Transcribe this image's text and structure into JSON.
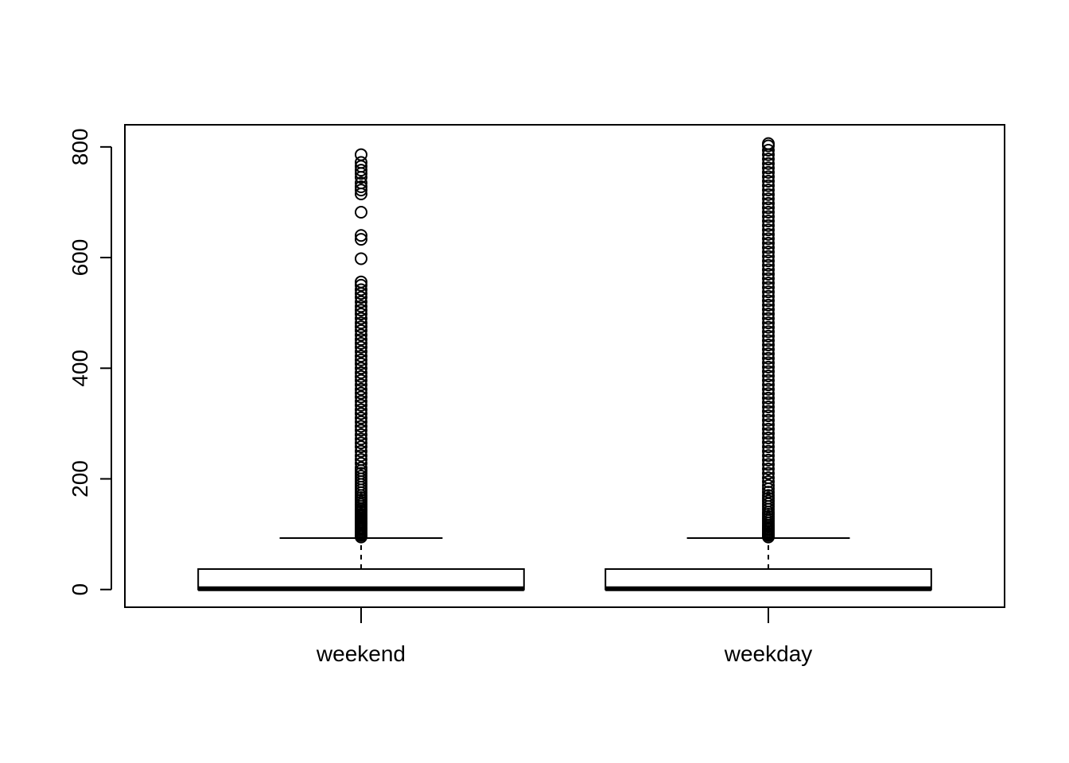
{
  "chart_data": {
    "type": "boxplot",
    "title": "",
    "xlabel": "",
    "ylabel": "",
    "ylim": [
      -32,
      840
    ],
    "yticks": [
      0,
      200,
      400,
      600,
      800
    ],
    "categories": [
      "weekend",
      "weekday"
    ],
    "boxes": [
      {
        "name": "weekend",
        "min": 0,
        "q1": 0,
        "median": 0,
        "q3": 37,
        "whisker_high": 93,
        "outliers": [
          95,
          98,
          100,
          102,
          105,
          108,
          110,
          112,
          115,
          118,
          120,
          122,
          125,
          128,
          130,
          133,
          136,
          140,
          143,
          146,
          150,
          154,
          158,
          162,
          166,
          170,
          175,
          180,
          185,
          190,
          195,
          200,
          205,
          210,
          215,
          220,
          228,
          235,
          242,
          250,
          258,
          265,
          272,
          280,
          288,
          295,
          303,
          310,
          318,
          325,
          333,
          340,
          348,
          355,
          362,
          370,
          378,
          385,
          392,
          400,
          408,
          415,
          422,
          430,
          438,
          445,
          452,
          460,
          468,
          475,
          482,
          490,
          498,
          505,
          512,
          520,
          528,
          535,
          542,
          550,
          556,
          598,
          633,
          640,
          682,
          715,
          722,
          728,
          735,
          745,
          752,
          758,
          765,
          772,
          786
        ]
      },
      {
        "name": "weekday",
        "min": 0,
        "q1": 0,
        "median": 0,
        "q3": 37,
        "whisker_high": 93,
        "outliers": [
          95,
          98,
          100,
          102,
          105,
          108,
          110,
          113,
          116,
          120,
          124,
          128,
          132,
          136,
          140,
          145,
          150,
          155,
          160,
          165,
          170,
          176,
          182,
          188,
          195,
          202,
          210,
          218,
          226,
          234,
          242,
          250,
          258,
          266,
          274,
          282,
          290,
          298,
          306,
          314,
          322,
          330,
          338,
          346,
          354,
          362,
          370,
          378,
          386,
          394,
          402,
          410,
          418,
          426,
          434,
          442,
          450,
          458,
          466,
          474,
          482,
          490,
          498,
          506,
          514,
          522,
          530,
          538,
          546,
          554,
          562,
          570,
          578,
          586,
          594,
          602,
          610,
          618,
          626,
          634,
          642,
          650,
          658,
          666,
          674,
          682,
          690,
          698,
          706,
          714,
          722,
          730,
          738,
          746,
          754,
          762,
          770,
          778,
          786,
          794,
          802,
          806
        ]
      }
    ],
    "grid": false,
    "legend": "none"
  }
}
